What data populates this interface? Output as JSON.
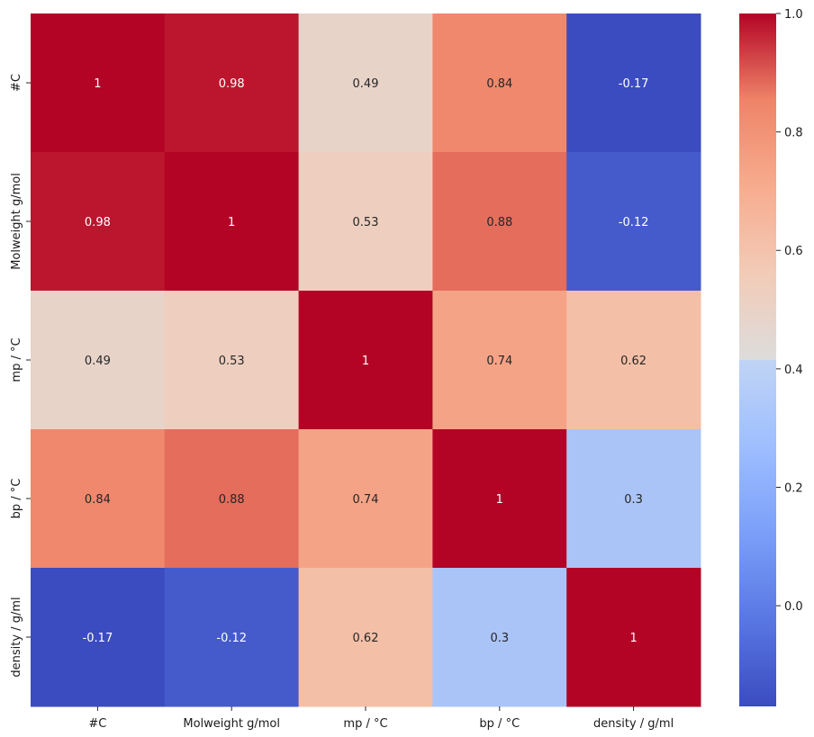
{
  "chart_data": {
    "type": "heatmap",
    "title": "",
    "xlabel": "",
    "ylabel": "",
    "x_categories": [
      "#C",
      "Molweight g/mol",
      "mp / °C",
      "bp / °C",
      "density / g/ml"
    ],
    "y_categories": [
      "#C",
      "Molweight g/mol",
      "mp / °C",
      "bp / °C",
      "density / g/ml"
    ],
    "values": [
      [
        1,
        0.98,
        0.49,
        0.84,
        -0.17
      ],
      [
        0.98,
        1,
        0.53,
        0.88,
        -0.12
      ],
      [
        0.49,
        0.53,
        1,
        0.74,
        0.62
      ],
      [
        0.84,
        0.88,
        0.74,
        1,
        0.3
      ],
      [
        -0.17,
        -0.12,
        0.62,
        0.3,
        1
      ]
    ],
    "value_labels": [
      [
        "1",
        "0.98",
        "0.49",
        "0.84",
        "-0.17"
      ],
      [
        "0.98",
        "1",
        "0.53",
        "0.88",
        "-0.12"
      ],
      [
        "0.49",
        "0.53",
        "1",
        "0.74",
        "0.62"
      ],
      [
        "0.84",
        "0.88",
        "0.74",
        "1",
        "0.3"
      ],
      [
        "-0.17",
        "-0.12",
        "0.62",
        "0.3",
        "1"
      ]
    ],
    "colormap": "coolwarm",
    "colorbar": {
      "range": [
        -0.17,
        1.0
      ],
      "ticks": [
        0.0,
        0.2,
        0.4,
        0.6,
        0.8,
        1.0
      ],
      "tick_labels": [
        "0.0",
        "0.2",
        "0.4",
        "0.6",
        "0.8",
        "1.0"
      ]
    }
  }
}
